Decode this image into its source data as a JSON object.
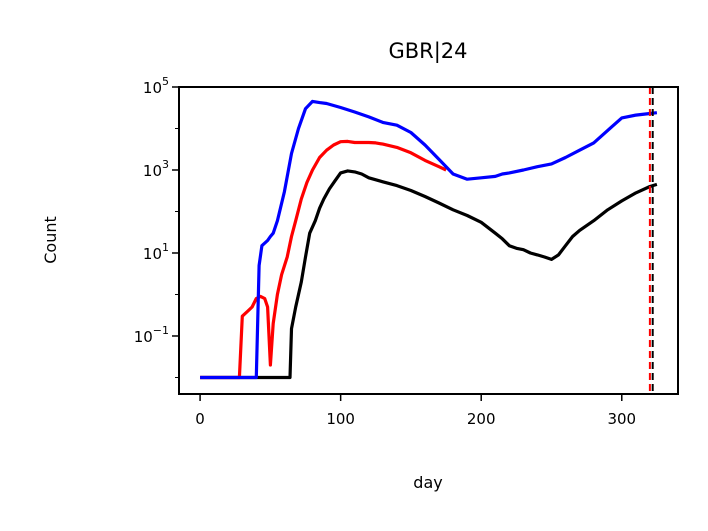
{
  "chart_data": {
    "type": "line",
    "title": "GBR|24",
    "xlabel": "day",
    "ylabel": "Count",
    "y_scale": "log",
    "xlim": [
      -15,
      340
    ],
    "ylim": [
      0.004,
      100000
    ],
    "x_ticks": [
      0,
      100,
      200,
      300
    ],
    "x_tick_labels": [
      "0",
      "100",
      "200",
      "300"
    ],
    "y_ticks": [
      {
        "value": 0.1,
        "base": "10",
        "exp": "−1"
      },
      {
        "value": 10,
        "base": "10",
        "exp": "1"
      },
      {
        "value": 1000,
        "base": "10",
        "exp": "3"
      },
      {
        "value": 100000,
        "base": "10",
        "exp": "5"
      }
    ],
    "grid": false,
    "legend": "none",
    "vlines": [
      {
        "x": 320,
        "color": "#ff0000",
        "style": "dashed"
      },
      {
        "x": 322,
        "color": "#000000",
        "style": "dashed"
      }
    ],
    "series": [
      {
        "color": "#000000",
        "points": [
          [
            0,
            0.01
          ],
          [
            20,
            0.01
          ],
          [
            40,
            0.01
          ],
          [
            60,
            0.01
          ],
          [
            64,
            0.01
          ],
          [
            65,
            0.15
          ],
          [
            68,
            0.5
          ],
          [
            70,
            1
          ],
          [
            72,
            2
          ],
          [
            75,
            8
          ],
          [
            78,
            30
          ],
          [
            82,
            60
          ],
          [
            85,
            120
          ],
          [
            88,
            200
          ],
          [
            92,
            350
          ],
          [
            96,
            550
          ],
          [
            100,
            850
          ],
          [
            105,
            950
          ],
          [
            110,
            900
          ],
          [
            115,
            800
          ],
          [
            120,
            650
          ],
          [
            130,
            520
          ],
          [
            140,
            420
          ],
          [
            150,
            320
          ],
          [
            160,
            230
          ],
          [
            170,
            160
          ],
          [
            180,
            110
          ],
          [
            190,
            80
          ],
          [
            200,
            55
          ],
          [
            210,
            30
          ],
          [
            215,
            22
          ],
          [
            220,
            15
          ],
          [
            225,
            13
          ],
          [
            230,
            12
          ],
          [
            235,
            10
          ],
          [
            240,
            9
          ],
          [
            245,
            8
          ],
          [
            250,
            7
          ],
          [
            255,
            9
          ],
          [
            260,
            15
          ],
          [
            265,
            25
          ],
          [
            270,
            35
          ],
          [
            280,
            60
          ],
          [
            290,
            110
          ],
          [
            300,
            180
          ],
          [
            310,
            280
          ],
          [
            320,
            400
          ],
          [
            325,
            450
          ]
        ]
      },
      {
        "color": "#ff0000",
        "points": [
          [
            0,
            0.01
          ],
          [
            28,
            0.01
          ],
          [
            30,
            0.3
          ],
          [
            34,
            0.4
          ],
          [
            37,
            0.5
          ],
          [
            40,
            0.8
          ],
          [
            43,
            0.9
          ],
          [
            46,
            0.8
          ],
          [
            48,
            0.5
          ],
          [
            50,
            0.02
          ],
          [
            52,
            0.2
          ],
          [
            55,
            1
          ],
          [
            58,
            3
          ],
          [
            62,
            8
          ],
          [
            65,
            25
          ],
          [
            68,
            60
          ],
          [
            72,
            200
          ],
          [
            76,
            500
          ],
          [
            80,
            1000
          ],
          [
            85,
            2000
          ],
          [
            90,
            3000
          ],
          [
            95,
            4000
          ],
          [
            100,
            4800
          ],
          [
            105,
            4900
          ],
          [
            110,
            4600
          ],
          [
            120,
            4600
          ],
          [
            125,
            4500
          ],
          [
            130,
            4200
          ],
          [
            140,
            3500
          ],
          [
            150,
            2600
          ],
          [
            160,
            1700
          ],
          [
            170,
            1200
          ],
          [
            175,
            1000
          ]
        ]
      },
      {
        "color": "#0000ff",
        "points": [
          [
            0,
            0.01
          ],
          [
            20,
            0.01
          ],
          [
            40,
            0.01
          ],
          [
            42,
            5
          ],
          [
            44,
            15
          ],
          [
            48,
            20
          ],
          [
            50,
            25
          ],
          [
            52,
            30
          ],
          [
            55,
            60
          ],
          [
            60,
            300
          ],
          [
            65,
            2500
          ],
          [
            70,
            10000
          ],
          [
            75,
            30000
          ],
          [
            80,
            45000
          ],
          [
            85,
            42000
          ],
          [
            90,
            40000
          ],
          [
            100,
            32000
          ],
          [
            110,
            25000
          ],
          [
            120,
            19000
          ],
          [
            130,
            14000
          ],
          [
            140,
            12000
          ],
          [
            150,
            8000
          ],
          [
            160,
            4000
          ],
          [
            170,
            1800
          ],
          [
            180,
            800
          ],
          [
            190,
            600
          ],
          [
            200,
            650
          ],
          [
            210,
            700
          ],
          [
            215,
            800
          ],
          [
            220,
            850
          ],
          [
            230,
            1000
          ],
          [
            240,
            1200
          ],
          [
            250,
            1400
          ],
          [
            260,
            2000
          ],
          [
            270,
            3000
          ],
          [
            280,
            4500
          ],
          [
            290,
            9000
          ],
          [
            300,
            18000
          ],
          [
            310,
            21000
          ],
          [
            320,
            23000
          ],
          [
            325,
            24000
          ]
        ]
      }
    ]
  }
}
